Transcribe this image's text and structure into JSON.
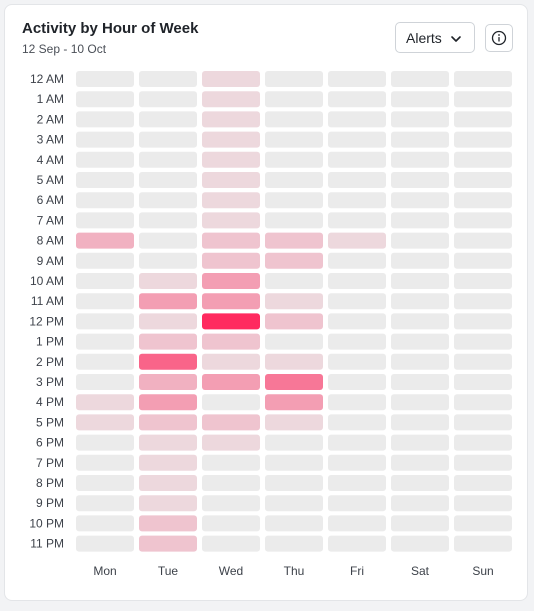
{
  "header": {
    "title": "Activity by Hour of Week",
    "subtitle": "12 Sep - 10 Oct",
    "dropdown_label": "Alerts"
  },
  "colors": {
    "empty": "#ebebeb",
    "accent": "#ff2a5f"
  },
  "chart_data": {
    "type": "heatmap",
    "title": "Activity by Hour of Week",
    "subtitle": "12 Sep - 10 Oct",
    "x": [
      "Mon",
      "Tue",
      "Wed",
      "Thu",
      "Fri",
      "Sat",
      "Sun"
    ],
    "y": [
      "12 AM",
      "1 AM",
      "2 AM",
      "3 AM",
      "4 AM",
      "5 AM",
      "6 AM",
      "7 AM",
      "8 AM",
      "9 AM",
      "10 AM",
      "11 AM",
      "12 PM",
      "1 PM",
      "2 PM",
      "3 PM",
      "4 PM",
      "5 PM",
      "6 PM",
      "7 PM",
      "8 PM",
      "9 PM",
      "10 PM",
      "11 PM"
    ],
    "values": [
      [
        0,
        0,
        1,
        0,
        0,
        0,
        0
      ],
      [
        0,
        0,
        1,
        0,
        0,
        0,
        0
      ],
      [
        0,
        0,
        1,
        0,
        0,
        0,
        0
      ],
      [
        0,
        0,
        1,
        0,
        0,
        0,
        0
      ],
      [
        0,
        0,
        1,
        0,
        0,
        0,
        0
      ],
      [
        0,
        0,
        1,
        0,
        0,
        0,
        0
      ],
      [
        0,
        0,
        1,
        0,
        0,
        0,
        0
      ],
      [
        0,
        0,
        1,
        0,
        0,
        0,
        0
      ],
      [
        3,
        0,
        2,
        2,
        1,
        0,
        0
      ],
      [
        0,
        0,
        2,
        2,
        0,
        0,
        0
      ],
      [
        0,
        1,
        4,
        0,
        0,
        0,
        0
      ],
      [
        0,
        4,
        4,
        1,
        0,
        0,
        0
      ],
      [
        0,
        1,
        10,
        2,
        0,
        0,
        0
      ],
      [
        0,
        2,
        2,
        0,
        0,
        0,
        0
      ],
      [
        0,
        7,
        1,
        1,
        0,
        0,
        0
      ],
      [
        0,
        3,
        4,
        6,
        0,
        0,
        0
      ],
      [
        1,
        4,
        0,
        4,
        0,
        0,
        0
      ],
      [
        1,
        2,
        2,
        1,
        0,
        0,
        0
      ],
      [
        0,
        1,
        1,
        0,
        0,
        0,
        0
      ],
      [
        0,
        1,
        0,
        0,
        0,
        0,
        0
      ],
      [
        0,
        1,
        0,
        0,
        0,
        0,
        0
      ],
      [
        0,
        1,
        0,
        0,
        0,
        0,
        0
      ],
      [
        0,
        2,
        0,
        0,
        0,
        0,
        0
      ],
      [
        0,
        2,
        0,
        0,
        0,
        0,
        0
      ]
    ],
    "vmin": 0,
    "vmax": 10,
    "color_low": "#ebebeb",
    "color_high": "#ff2a5f",
    "legend": "none",
    "grid": false
  }
}
